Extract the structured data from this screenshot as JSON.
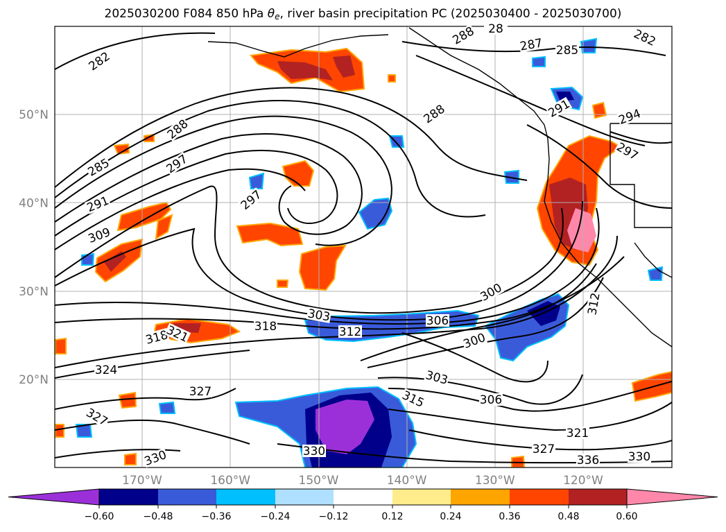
{
  "title": {
    "prefix": "2025030200 F084 850 hPa ",
    "theta": "θ",
    "theta_sub": "e",
    "suffix": ", river basin precipitation PC (2025030400 - 2025030700)"
  },
  "axes": {
    "lat_labels": [
      "50°N",
      "40°N",
      "30°N",
      "20°N"
    ],
    "lon_labels": [
      "170°W",
      "160°W",
      "150°W",
      "140°W",
      "130°W",
      "120°W"
    ],
    "lat_values": [
      50,
      40,
      30,
      20
    ],
    "lon_values": [
      -170,
      -160,
      -150,
      -140,
      -130,
      -120
    ],
    "grid": true
  },
  "colorbar": {
    "ticks": [
      "−0.60",
      "−0.48",
      "−0.36",
      "−0.24",
      "−0.12",
      "0.12",
      "0.24",
      "0.36",
      "0.48",
      "0.60"
    ],
    "colors": [
      "#9b30d9",
      "#00008b",
      "#3a5bd9",
      "#00bfff",
      "#b0e0ff",
      "#ffffff",
      "#ffec8b",
      "#ffa500",
      "#ff4500",
      "#b22222",
      "#ff88aa"
    ],
    "extend": "both"
  },
  "contour_labels": [
    "282",
    "285",
    "288",
    "291",
    "297",
    "309",
    "288",
    "297",
    "288",
    "28",
    "287",
    "285",
    "282",
    "291",
    "294",
    "297",
    "300",
    "303",
    "306",
    "312",
    "318",
    "318",
    "321",
    "324",
    "327",
    "327",
    "303",
    "306",
    "300",
    "315",
    "312",
    "321",
    "327",
    "330",
    "336",
    "330",
    "330"
  ],
  "colors": {
    "contour": "#000000",
    "grid": "#b0b0b0",
    "coast": "#000000"
  }
}
